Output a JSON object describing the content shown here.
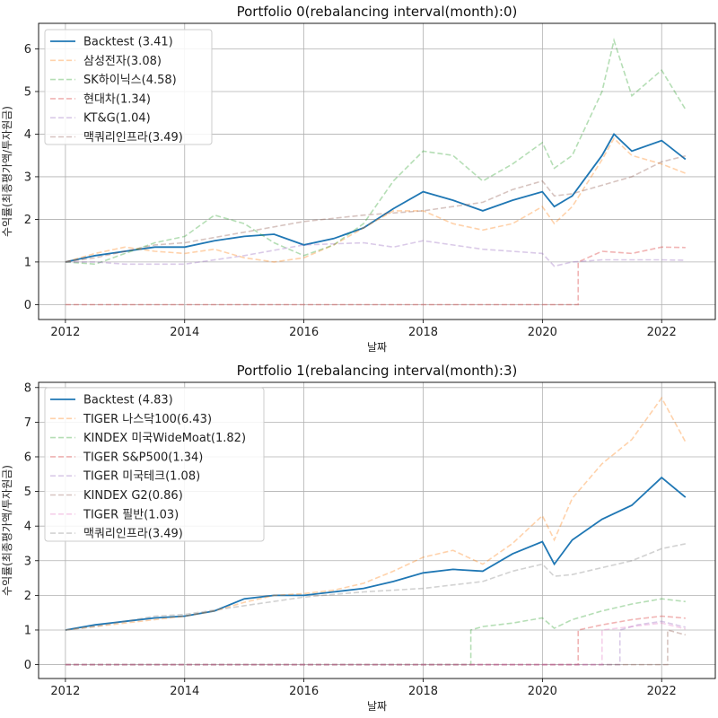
{
  "chart_data": [
    {
      "type": "line",
      "title": "Portfolio 0(rebalancing interval(month):0)",
      "xlabel": "날짜",
      "ylabel": "수익률(최종평가액/투자원금)",
      "xlim": [
        2011.55,
        2022.9
      ],
      "ylim": [
        -0.35,
        6.6
      ],
      "xticks": [
        2012,
        2014,
        2016,
        2018,
        2020,
        2022
      ],
      "xtick_labels": [
        "2012",
        "2014",
        "2016",
        "2018",
        "2020",
        "2022"
      ],
      "yticks": [
        0,
        1,
        2,
        3,
        4,
        5,
        6
      ],
      "ytick_labels": [
        "0",
        "1",
        "2",
        "3",
        "4",
        "5",
        "6"
      ],
      "grid": true,
      "legend_position": "upper-left",
      "series": [
        {
          "name": "Backtest (3.41)",
          "color": "#1f77b4",
          "style": "solid",
          "x": [
            2012.0,
            2012.5,
            2013.0,
            2013.5,
            2014.0,
            2014.5,
            2015.0,
            2015.5,
            2016.0,
            2016.5,
            2017.0,
            2017.5,
            2018.0,
            2018.5,
            2019.0,
            2019.5,
            2020.0,
            2020.2,
            2020.5,
            2021.0,
            2021.2,
            2021.5,
            2022.0,
            2022.4
          ],
          "y": [
            1.0,
            1.15,
            1.25,
            1.35,
            1.35,
            1.5,
            1.6,
            1.65,
            1.4,
            1.55,
            1.8,
            2.25,
            2.65,
            2.45,
            2.2,
            2.45,
            2.65,
            2.3,
            2.55,
            3.5,
            4.0,
            3.6,
            3.85,
            3.41
          ]
        },
        {
          "name": "삼성전자(3.08)",
          "color": "#ff7f0e",
          "style": "dashed",
          "x": [
            2012.0,
            2012.5,
            2013.0,
            2013.5,
            2014.0,
            2014.5,
            2015.0,
            2015.5,
            2016.0,
            2016.5,
            2017.0,
            2017.5,
            2018.0,
            2018.5,
            2019.0,
            2019.5,
            2020.0,
            2020.2,
            2020.5,
            2021.0,
            2021.2,
            2021.5,
            2022.0,
            2022.4
          ],
          "y": [
            1.0,
            1.2,
            1.35,
            1.25,
            1.2,
            1.3,
            1.1,
            1.0,
            1.1,
            1.4,
            1.8,
            2.2,
            2.2,
            1.9,
            1.75,
            1.9,
            2.3,
            1.9,
            2.3,
            3.4,
            3.9,
            3.5,
            3.3,
            3.08
          ]
        },
        {
          "name": "SK하이닉스(4.58)",
          "color": "#2ca02c",
          "style": "dashed",
          "x": [
            2012.0,
            2012.5,
            2013.0,
            2013.5,
            2014.0,
            2014.5,
            2015.0,
            2015.5,
            2016.0,
            2016.5,
            2017.0,
            2017.5,
            2018.0,
            2018.5,
            2019.0,
            2019.5,
            2020.0,
            2020.2,
            2020.5,
            2021.0,
            2021.2,
            2021.5,
            2022.0,
            2022.4
          ],
          "y": [
            1.0,
            0.95,
            1.2,
            1.45,
            1.6,
            2.1,
            1.9,
            1.45,
            1.15,
            1.4,
            1.9,
            2.9,
            3.6,
            3.5,
            2.9,
            3.3,
            3.8,
            3.2,
            3.5,
            5.0,
            6.2,
            4.9,
            5.5,
            4.58
          ]
        },
        {
          "name": "현대차(1.34)",
          "color": "#d62728",
          "style": "dashed",
          "x": [
            2012.0,
            2020.6,
            2020.6,
            2021.0,
            2021.5,
            2022.0,
            2022.4
          ],
          "y": [
            0.0,
            0.0,
            1.0,
            1.25,
            1.2,
            1.35,
            1.34
          ]
        },
        {
          "name": "KT&G(1.04)",
          "color": "#9467bd",
          "style": "dashed",
          "x": [
            2012.0,
            2012.5,
            2013.0,
            2014.0,
            2015.0,
            2016.0,
            2017.0,
            2017.5,
            2018.0,
            2019.0,
            2020.0,
            2020.2,
            2020.5,
            2021.0,
            2022.0,
            2022.4
          ],
          "y": [
            1.0,
            1.0,
            0.95,
            0.95,
            1.15,
            1.4,
            1.45,
            1.35,
            1.5,
            1.3,
            1.2,
            0.9,
            1.0,
            1.05,
            1.05,
            1.04
          ]
        },
        {
          "name": "맥쿼리인프라(3.49)",
          "color": "#8c564b",
          "style": "dashed",
          "x": [
            2012.0,
            2012.5,
            2013.0,
            2013.5,
            2014.0,
            2015.0,
            2016.0,
            2017.0,
            2018.0,
            2019.0,
            2019.5,
            2020.0,
            2020.2,
            2020.5,
            2021.0,
            2021.5,
            2022.0,
            2022.4
          ],
          "y": [
            1.0,
            1.1,
            1.25,
            1.4,
            1.45,
            1.7,
            1.95,
            2.1,
            2.2,
            2.4,
            2.7,
            2.9,
            2.55,
            2.6,
            2.8,
            3.0,
            3.35,
            3.49
          ]
        }
      ]
    },
    {
      "type": "line",
      "title": "Portfolio 1(rebalancing interval(month):3)",
      "xlabel": "날짜",
      "ylabel": "수익률(최종평가액/투자원금)",
      "xlim": [
        2011.55,
        2022.9
      ],
      "ylim": [
        -0.4,
        8.15
      ],
      "xticks": [
        2012,
        2014,
        2016,
        2018,
        2020,
        2022
      ],
      "xtick_labels": [
        "2012",
        "2014",
        "2016",
        "2018",
        "2020",
        "2022"
      ],
      "yticks": [
        0,
        1,
        2,
        3,
        4,
        5,
        6,
        7,
        8
      ],
      "ytick_labels": [
        "0",
        "1",
        "2",
        "3",
        "4",
        "5",
        "6",
        "7",
        "8"
      ],
      "grid": true,
      "legend_position": "upper-left",
      "series": [
        {
          "name": "Backtest (4.83)",
          "color": "#1f77b4",
          "style": "solid",
          "x": [
            2012.0,
            2012.5,
            2013.0,
            2013.5,
            2014.0,
            2014.5,
            2015.0,
            2015.5,
            2016.0,
            2016.5,
            2017.0,
            2017.5,
            2018.0,
            2018.5,
            2019.0,
            2019.5,
            2020.0,
            2020.2,
            2020.5,
            2021.0,
            2021.5,
            2022.0,
            2022.4
          ],
          "y": [
            1.0,
            1.15,
            1.25,
            1.35,
            1.4,
            1.55,
            1.9,
            2.0,
            2.0,
            2.1,
            2.2,
            2.4,
            2.65,
            2.75,
            2.7,
            3.2,
            3.55,
            2.9,
            3.6,
            4.2,
            4.6,
            5.4,
            4.83
          ]
        },
        {
          "name": "TIGER 나스닥100(6.43)",
          "color": "#ff7f0e",
          "style": "dashed",
          "x": [
            2012.0,
            2012.5,
            2013.0,
            2013.5,
            2014.0,
            2014.5,
            2015.0,
            2015.5,
            2016.0,
            2016.5,
            2017.0,
            2017.5,
            2018.0,
            2018.5,
            2019.0,
            2019.5,
            2020.0,
            2020.2,
            2020.5,
            2021.0,
            2021.5,
            2022.0,
            2022.4
          ],
          "y": [
            1.0,
            1.1,
            1.2,
            1.3,
            1.4,
            1.55,
            1.8,
            2.0,
            2.05,
            2.15,
            2.35,
            2.7,
            3.1,
            3.3,
            2.9,
            3.5,
            4.3,
            3.6,
            4.8,
            5.8,
            6.5,
            7.7,
            6.43
          ]
        },
        {
          "name": "KINDEX 미국WideMoat(1.82)",
          "color": "#2ca02c",
          "style": "dashed",
          "x": [
            2012.0,
            2018.8,
            2018.8,
            2019.0,
            2019.5,
            2020.0,
            2020.2,
            2020.5,
            2021.0,
            2021.5,
            2022.0,
            2022.4
          ],
          "y": [
            0.0,
            0.0,
            1.0,
            1.1,
            1.2,
            1.35,
            1.05,
            1.3,
            1.55,
            1.75,
            1.9,
            1.82
          ]
        },
        {
          "name": "TIGER S&P500(1.34)",
          "color": "#d62728",
          "style": "dashed",
          "x": [
            2012.0,
            2020.6,
            2020.6,
            2021.0,
            2021.5,
            2022.0,
            2022.4
          ],
          "y": [
            0.0,
            0.0,
            1.0,
            1.15,
            1.3,
            1.4,
            1.34
          ]
        },
        {
          "name": "TIGER 미국테크(1.08)",
          "color": "#9467bd",
          "style": "dashed",
          "x": [
            2012.0,
            2021.3,
            2021.3,
            2021.6,
            2022.0,
            2022.4
          ],
          "y": [
            0.0,
            0.0,
            1.0,
            1.15,
            1.25,
            1.08
          ]
        },
        {
          "name": "KINDEX G2(0.86)",
          "color": "#8c564b",
          "style": "dashed",
          "x": [
            2012.0,
            2022.1,
            2022.1,
            2022.4
          ],
          "y": [
            0.0,
            0.0,
            1.0,
            0.86
          ]
        },
        {
          "name": "TIGER 필반(1.03)",
          "color": "#e377c2",
          "style": "dashed",
          "x": [
            2012.0,
            2021.0,
            2021.0,
            2021.5,
            2022.0,
            2022.4
          ],
          "y": [
            0.0,
            0.0,
            1.0,
            1.1,
            1.2,
            1.03
          ]
        },
        {
          "name": "맥쿼리인프라(3.49)",
          "color": "#7f7f7f",
          "style": "dashed",
          "x": [
            2012.0,
            2012.5,
            2013.0,
            2013.5,
            2014.0,
            2015.0,
            2016.0,
            2017.0,
            2018.0,
            2019.0,
            2019.5,
            2020.0,
            2020.2,
            2020.5,
            2021.0,
            2021.5,
            2022.0,
            2022.4
          ],
          "y": [
            1.0,
            1.1,
            1.25,
            1.4,
            1.45,
            1.7,
            1.95,
            2.1,
            2.2,
            2.4,
            2.7,
            2.9,
            2.55,
            2.6,
            2.8,
            3.0,
            3.35,
            3.49
          ]
        }
      ]
    }
  ]
}
